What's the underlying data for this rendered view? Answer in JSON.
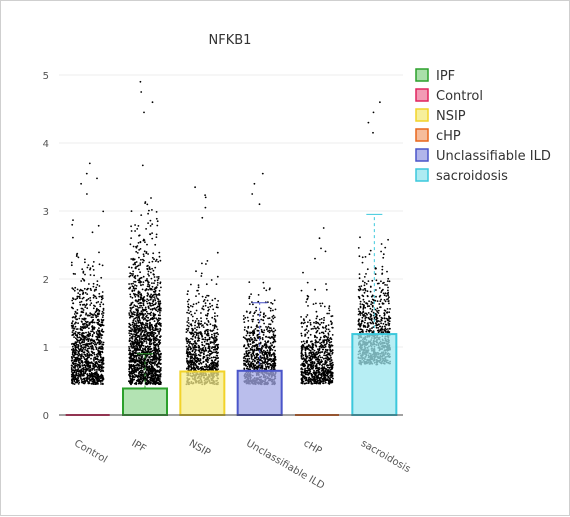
{
  "chart_data": {
    "type": "bar",
    "title": "NFKB1",
    "xlabel": "",
    "ylabel": "",
    "ylim": [
      0,
      5
    ],
    "yticks": [
      0,
      1,
      2,
      3,
      4,
      5
    ],
    "categories": [
      "Control",
      "IPF",
      "NSIP",
      "Unclassifiable ILD",
      "cHP",
      "sacroidosis"
    ],
    "series": [
      {
        "name": "Control",
        "category": "Control",
        "value": 0.0,
        "error_upper": 0.0,
        "fill": "#f08aa8",
        "stroke": "#e0245e",
        "points_max": 3.7,
        "points_spread": 0.62,
        "points_min": 0.15
      },
      {
        "name": "IPF",
        "category": "IPF",
        "value": 0.39,
        "error_upper": 0.9,
        "fill": "#9ad99a",
        "stroke": "#2ca02c",
        "points_max": 4.9,
        "points_spread": 0.75,
        "points_min": 0.15
      },
      {
        "name": "NSIP",
        "category": "NSIP",
        "value": 0.64,
        "error_upper": 0.64,
        "fill": "#f5ec8a",
        "stroke": "#f2d32a",
        "points_max": 3.35,
        "points_spread": 0.5,
        "points_min": 0.1
      },
      {
        "name": "Unclassifiable ILD",
        "category": "Unclassifiable ILD",
        "value": 0.65,
        "error_upper": 1.65,
        "fill": "#a3a8e6",
        "stroke": "#4a55c9",
        "points_max": 3.55,
        "points_spread": 0.45,
        "points_min": 0.3
      },
      {
        "name": "cHP",
        "category": "cHP",
        "value": 0.0,
        "error_upper": 0.0,
        "fill": "#f5b08a",
        "stroke": "#e8661c",
        "points_max": 2.75,
        "points_spread": 0.42,
        "points_min": 0.45
      },
      {
        "name": "sacroidosis",
        "category": "sacroidosis",
        "value": 1.19,
        "error_upper": 2.95,
        "fill": "#9fe8f0",
        "stroke": "#3cc8dc",
        "points_max": 4.6,
        "points_spread": 0.52,
        "points_min": 0.2
      }
    ],
    "legend": {
      "position": "top-right",
      "order": [
        "IPF",
        "Control",
        "NSIP",
        "cHP",
        "Unclassifiable ILD",
        "sacroidosis"
      ]
    },
    "grid": true
  }
}
